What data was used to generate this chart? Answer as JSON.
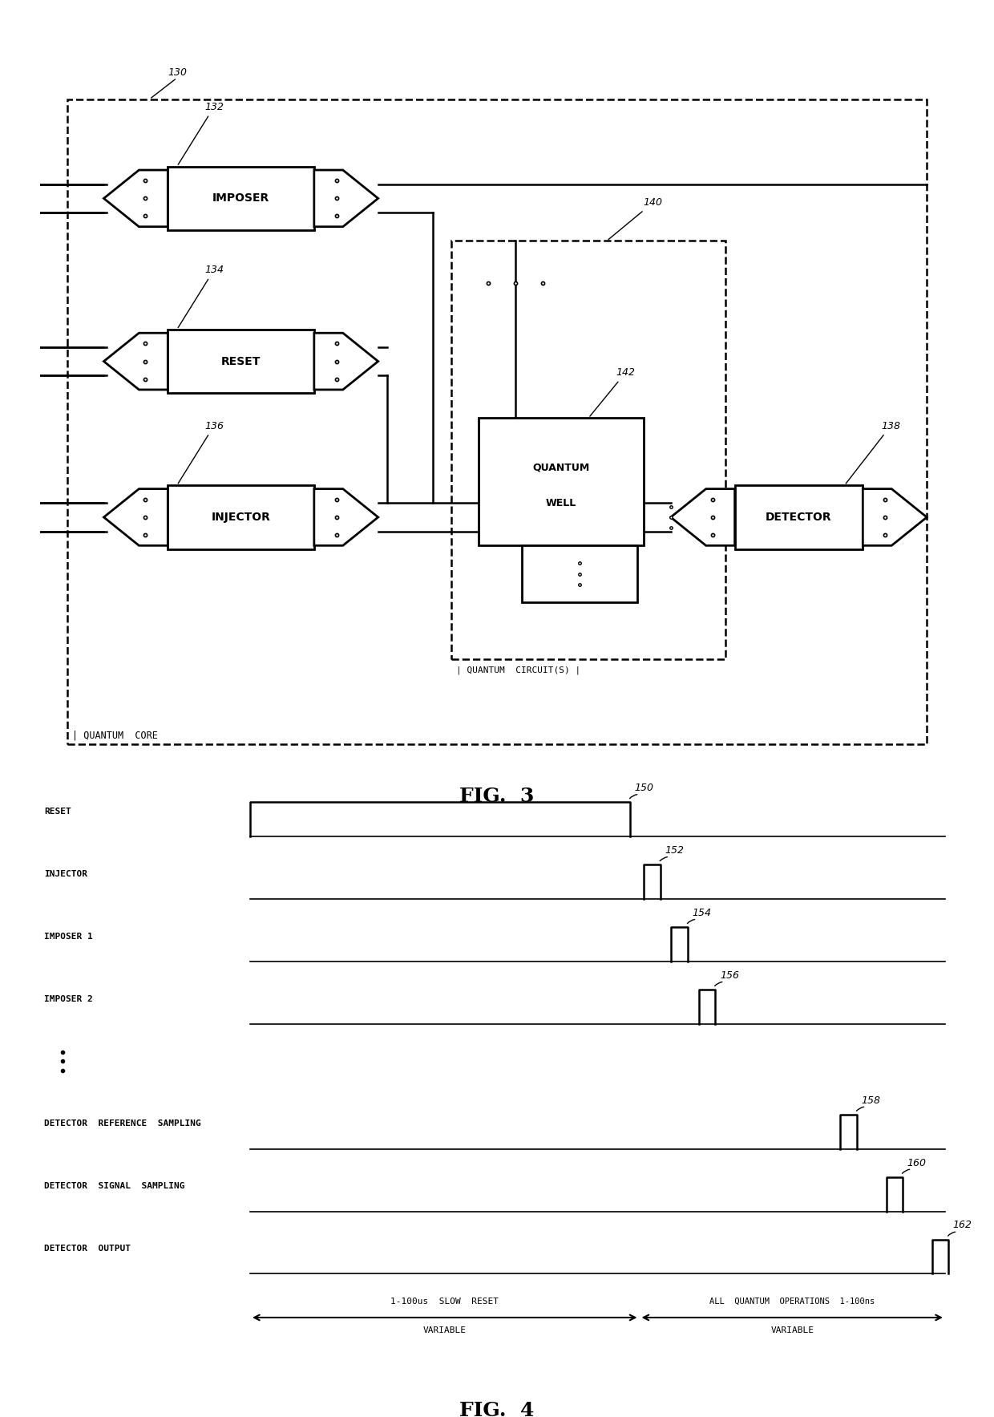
{
  "bg_color": "#ffffff",
  "fig3_title": "FIG. 3",
  "fig4_title": "FIG. 4",
  "arrow_left_text1": "1-100us  SLOW  RESET",
  "arrow_left_text2": "VARIABLE",
  "arrow_right_text1": "ALL  QUANTUM  OPERATIONS  1-100ns",
  "arrow_right_text2": "VARIABLE"
}
